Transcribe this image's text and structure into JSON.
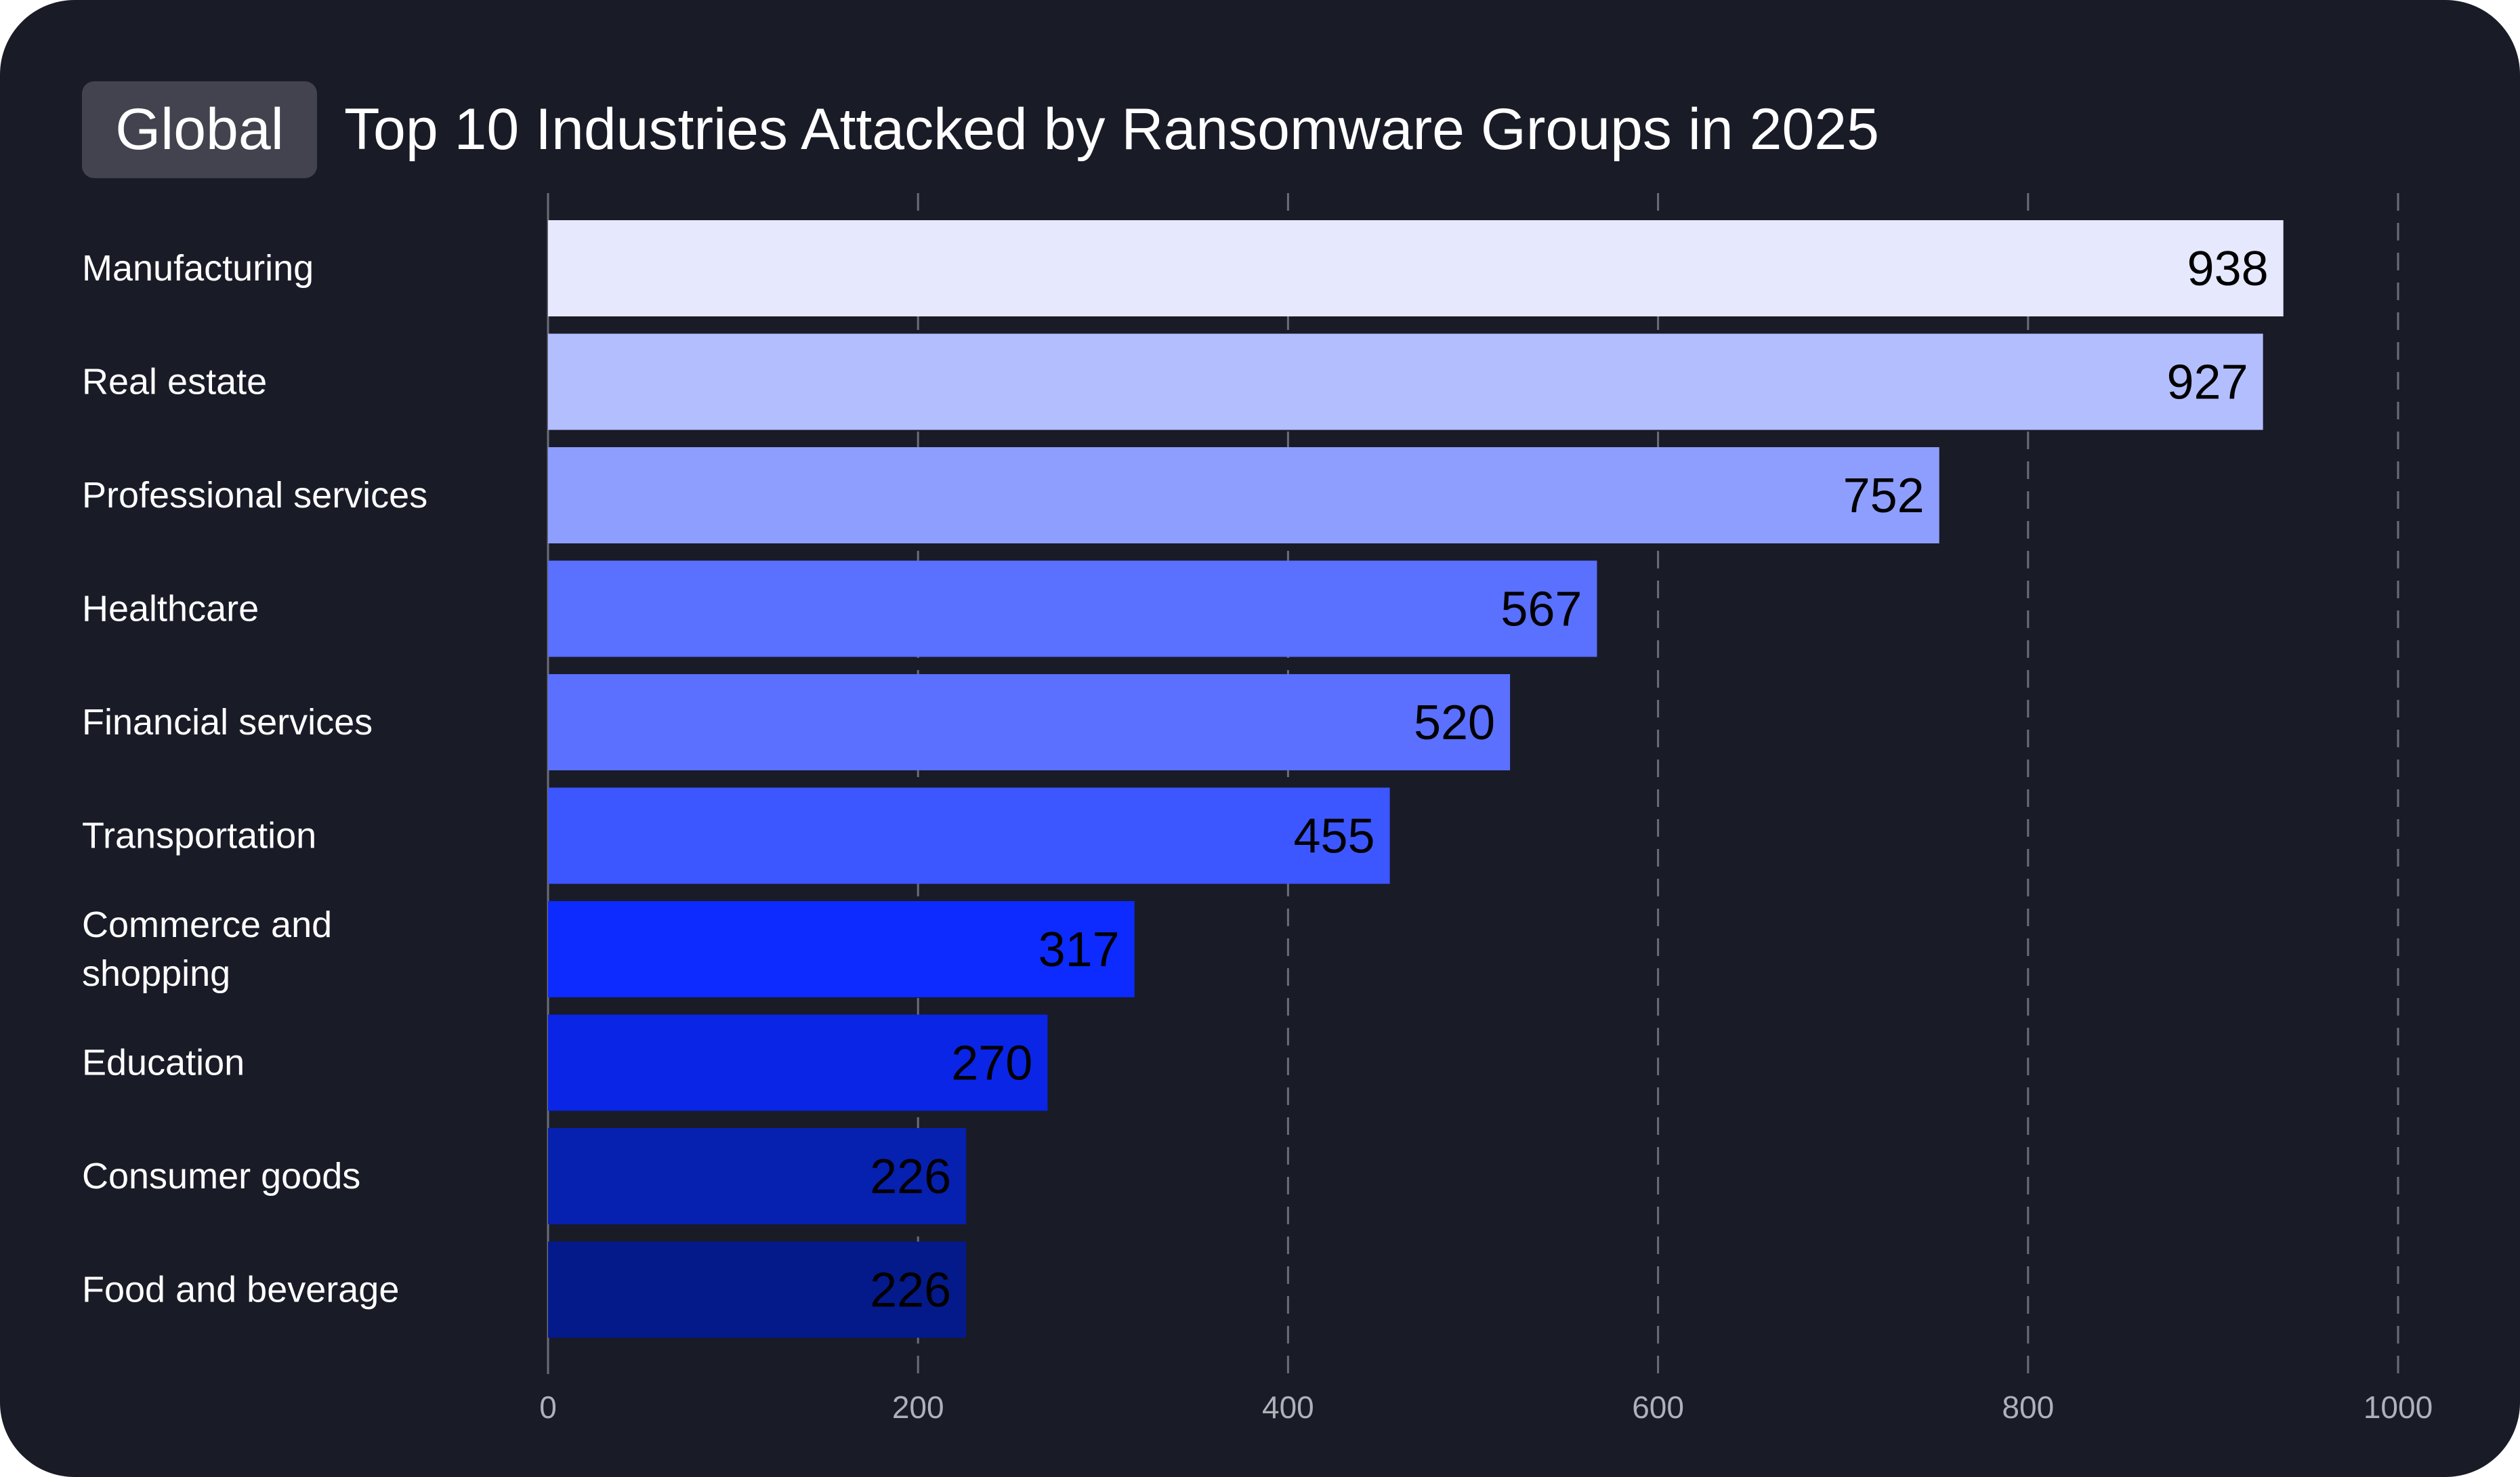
{
  "header": {
    "badge": "Global",
    "title": "Top 10 Industries Attacked by Ransomware Groups in 2025"
  },
  "chart_data": {
    "type": "bar",
    "orientation": "horizontal",
    "title": "Top 10 Industries Attacked by Ransomware Groups in 2025",
    "categories": [
      [
        "Manufacturing"
      ],
      [
        "Real estate"
      ],
      [
        "Professional services"
      ],
      [
        "Healthcare"
      ],
      [
        "Financial services"
      ],
      [
        "Transportation"
      ],
      [
        "Commerce and",
        "shopping"
      ],
      [
        "Education"
      ],
      [
        "Consumer goods"
      ],
      [
        "Food and beverage"
      ]
    ],
    "values": [
      938,
      927,
      752,
      567,
      520,
      455,
      317,
      270,
      226,
      226
    ],
    "colors": [
      "#e6e8fd",
      "#b3beff",
      "#8e9eff",
      "#5a70ff",
      "#5b70ff",
      "#3c57ff",
      "#0d2bff",
      "#0a25e6",
      "#0620b0",
      "#041a8a"
    ],
    "xlim": [
      0,
      1000
    ],
    "xticks": [
      "0",
      "200",
      "400",
      "600",
      "800",
      "1000"
    ],
    "grid": "vertical dashed",
    "xlabel": "",
    "ylabel": ""
  }
}
